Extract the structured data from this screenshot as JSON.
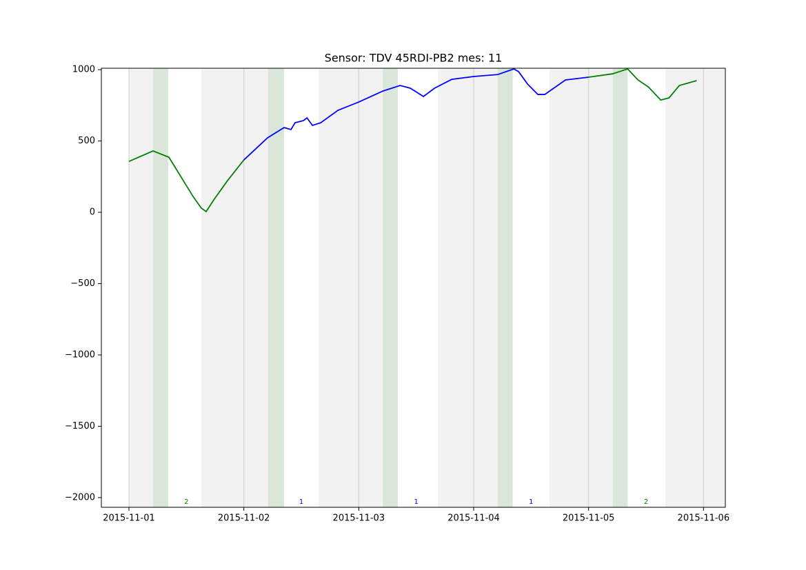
{
  "chart_data": {
    "type": "line",
    "title": "Sensor: TDV 45RDI-PB2 mes: 11",
    "xlim": [
      -0.24,
      5.19
    ],
    "ylim": [
      -2068,
      1010
    ],
    "xticks": [
      {
        "value": 0,
        "label": "2015-11-01"
      },
      {
        "value": 1,
        "label": "2015-11-02"
      },
      {
        "value": 2,
        "label": "2015-11-03"
      },
      {
        "value": 3,
        "label": "2015-11-04"
      },
      {
        "value": 4,
        "label": "2015-11-05"
      },
      {
        "value": 5,
        "label": "2015-11-06"
      }
    ],
    "yticks": [
      1000,
      500,
      0,
      {
        "value": -500,
        "label": "−500"
      },
      {
        "value": -1000,
        "label": "−1000"
      },
      {
        "value": -1500,
        "label": "−1500"
      },
      {
        "value": -2000,
        "label": "−2000"
      }
    ],
    "xgrid": true,
    "spans": [
      {
        "start": 0,
        "end": 0.342,
        "color": "#808080"
      },
      {
        "start": 0.63,
        "end": 1.35,
        "color": "#808080"
      },
      {
        "start": 1.65,
        "end": 2.34,
        "color": "#808080"
      },
      {
        "start": 2.69,
        "end": 3.34,
        "color": "#808080"
      },
      {
        "start": 3.66,
        "end": 4.34,
        "color": "#808080"
      },
      {
        "start": 4.67,
        "end": 5.19,
        "color": "#808080"
      },
      {
        "start": 0.21,
        "end": 0.342,
        "color": "#008000"
      },
      {
        "start": 1.21,
        "end": 1.35,
        "color": "#008000"
      },
      {
        "start": 2.21,
        "end": 2.34,
        "color": "#008000"
      },
      {
        "start": 3.21,
        "end": 3.34,
        "color": "#008000"
      },
      {
        "start": 4.21,
        "end": 4.34,
        "color": "#008000"
      }
    ],
    "series": [
      {
        "color": "#008000",
        "x": [
          0,
          0.21,
          0.348,
          0.558,
          0.63,
          0.672,
          0.738,
          0.858,
          1.0
        ],
        "values": [
          357,
          430,
          386,
          111,
          29,
          5,
          87,
          222,
          367
        ]
      },
      {
        "color": "#0000ff",
        "x": [
          1.0,
          1.206,
          1.35,
          1.41,
          1.446,
          1.519,
          1.549,
          1.597,
          1.669,
          1.819,
          2.0,
          2.21,
          2.36,
          2.449,
          2.563,
          2.659,
          2.809,
          3.0,
          3.21,
          3.35,
          3.391,
          3.469,
          3.559,
          3.619,
          3.679,
          3.799,
          4.0
        ],
        "values": [
          367,
          522,
          594,
          580,
          628,
          643,
          662,
          609,
          628,
          715,
          773,
          850,
          889,
          870,
          812,
          870,
          932,
          952,
          966,
          1005,
          986,
          899,
          826,
          826,
          860,
          928,
          947
        ]
      },
      {
        "color": "#008000",
        "x": [
          4.0,
          4.21,
          4.34,
          4.43,
          4.52,
          4.628,
          4.7,
          4.79,
          4.94
        ],
        "values": [
          947,
          971,
          1005,
          928,
          879,
          787,
          802,
          889,
          923
        ]
      }
    ],
    "annotations": [
      {
        "x": 0.5,
        "y": -2030,
        "text": "2",
        "color": "#008000"
      },
      {
        "x": 1.5,
        "y": -2030,
        "text": "1",
        "color": "#0000ff"
      },
      {
        "x": 2.5,
        "y": -2030,
        "text": "1",
        "color": "#0000ff"
      },
      {
        "x": 3.5,
        "y": -2030,
        "text": "1",
        "color": "#0000ff"
      },
      {
        "x": 4.5,
        "y": -2030,
        "text": "2",
        "color": "#008000"
      }
    ]
  }
}
